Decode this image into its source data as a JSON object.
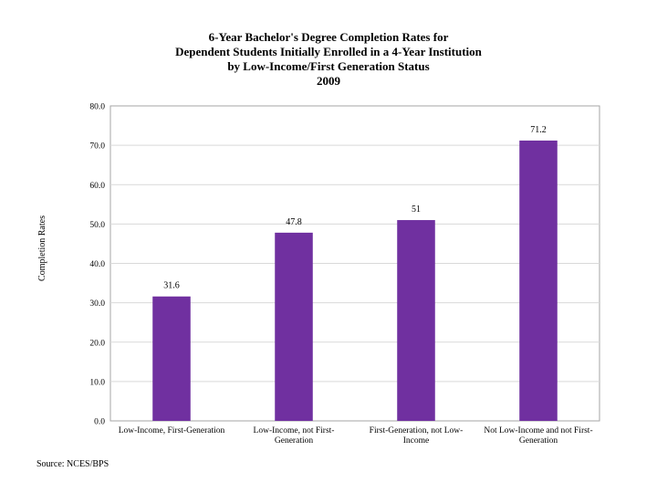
{
  "chart_data": {
    "type": "bar",
    "title": [
      "6-Year Bachelor's Degree Completion Rates for",
      "Dependent Students Initially Enrolled in a 4-Year Institution",
      "by Low-Income/First Generation Status",
      "2009"
    ],
    "ylabel": "Completion Rates",
    "xlabel": "",
    "ylim": [
      0,
      80
    ],
    "yticks": [
      "0.0",
      "10.0",
      "20.0",
      "30.0",
      "40.0",
      "50.0",
      "60.0",
      "70.0",
      "80.0"
    ],
    "categories": [
      [
        "Low-Income, First-Generation"
      ],
      [
        "Low-Income, not First-",
        "Generation"
      ],
      [
        "First-Generation, not Low-",
        "Income"
      ],
      [
        "Not Low-Income and not First-",
        "Generation"
      ]
    ],
    "values": [
      31.6,
      47.8,
      51,
      71.2
    ],
    "data_labels": [
      "31.6",
      "47.8",
      "51",
      "71.2"
    ],
    "bar_color": "#7030a0",
    "grid": true
  },
  "source": "Source: NCES/BPS"
}
